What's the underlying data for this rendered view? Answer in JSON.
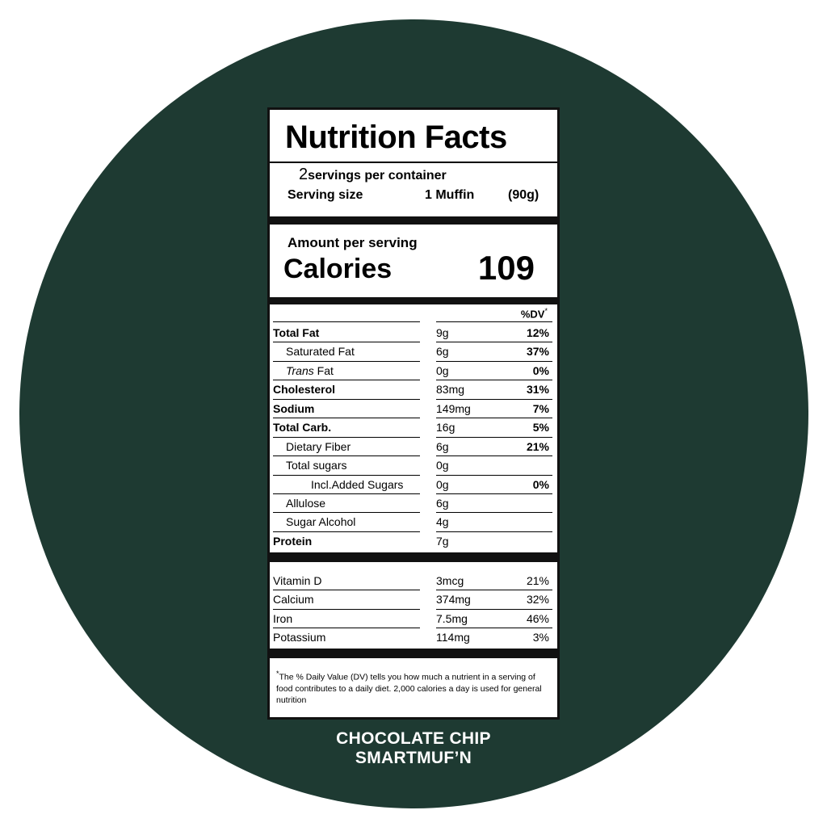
{
  "title": "Nutrition Facts",
  "servings_count": "2",
  "servings_text": "servings per container",
  "serving_size_label": "Serving size",
  "serving_size_value": "1 Muffin",
  "serving_size_weight": "(90g)",
  "amount_per_serving": "Amount per serving",
  "calories_label": "Calories",
  "calories_value": "109",
  "dv_header": "%DV",
  "asterisk": "*",
  "nutrients": [
    {
      "label": "Total Fat",
      "amount": "9g",
      "dv": "12%"
    },
    {
      "label": "Saturated Fat",
      "amount": "6g",
      "dv": "37%"
    },
    {
      "label_italic": "Trans",
      "label": " Fat",
      "amount": "0g",
      "dv": "0%"
    },
    {
      "label": "Cholesterol",
      "amount": "83mg",
      "dv": "31%"
    },
    {
      "label": "Sodium",
      "amount": "149mg",
      "dv": "7%"
    },
    {
      "label": "Total Carb.",
      "amount": "16g",
      "dv": "5%"
    },
    {
      "label": "Dietary Fiber",
      "amount": "6g",
      "dv": "21%"
    },
    {
      "label": "Total sugars",
      "amount": "0g"
    },
    {
      "label": "Incl.Added Sugars",
      "amount": "0g",
      "dv": "0%"
    },
    {
      "label": "Allulose",
      "amount": "6g"
    },
    {
      "label": "Sugar Alcohol",
      "amount": "4g"
    },
    {
      "label": "Protein",
      "amount": "7g"
    }
  ],
  "vitamins": [
    {
      "label": "Vitamin D",
      "amount": "3mcg",
      "dv": "21%"
    },
    {
      "label": "Calcium",
      "amount": "374mg",
      "dv": "32%"
    },
    {
      "label": "Iron",
      "amount": "7.5mg",
      "dv": "46%"
    },
    {
      "label": "Potassium",
      "amount": "114mg",
      "dv": "3%"
    }
  ],
  "footnote": "The % Daily Value (DV) tells you how much a nutrient in a serving of food contributes to a daily diet. 2,000 calories a day is used for general nutrition",
  "product_line1": "CHOCOLATE CHIP",
  "product_line2": "SMARTMUF’N",
  "colors": {
    "background_circle": "#1e3a32",
    "label_bg": "#ffffff",
    "text": "#000000"
  }
}
